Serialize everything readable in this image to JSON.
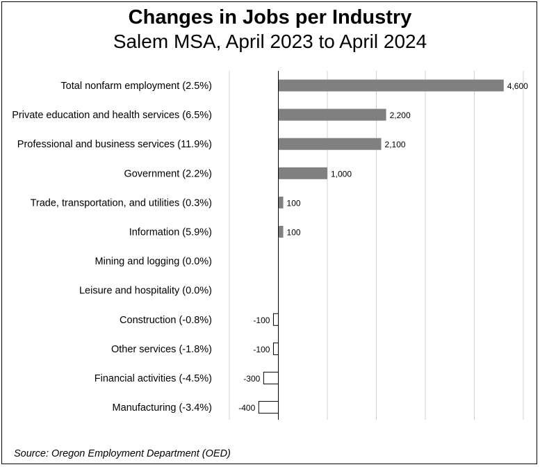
{
  "chart_data": {
    "type": "bar",
    "orientation": "horizontal",
    "title": "Changes in Jobs per Industry",
    "subtitle": "Salem MSA, April 2023 to April 2024",
    "categories": [
      "Total nonfarm employment (2.5%)",
      "Private education and health services (6.5%)",
      "Professional and business services (11.9%)",
      "Government (2.2%)",
      "Trade, transportation, and utilities (0.3%)",
      "Information (5.9%)",
      "Mining and logging (0.0%)",
      "Leisure and hospitality (0.0%)",
      "Construction (-0.8%)",
      "Other services (-1.8%)",
      "Financial activities (-4.5%)",
      "Manufacturing (-3.4%)"
    ],
    "values": [
      4600,
      2200,
      2100,
      1000,
      100,
      100,
      0,
      0,
      -100,
      -100,
      -300,
      -400
    ],
    "value_labels": [
      "4,600",
      "2,200",
      "2,100",
      "1,000",
      "100",
      "100",
      "",
      "",
      "-100",
      "-100",
      "-300",
      "-400"
    ],
    "xlim": [
      -1000,
      5000
    ],
    "grid": true,
    "colors": {
      "positive": "#808080",
      "negative": "#ffffff",
      "outline": "#000000"
    }
  },
  "source": "Source: Oregon Employment Department (OED)"
}
